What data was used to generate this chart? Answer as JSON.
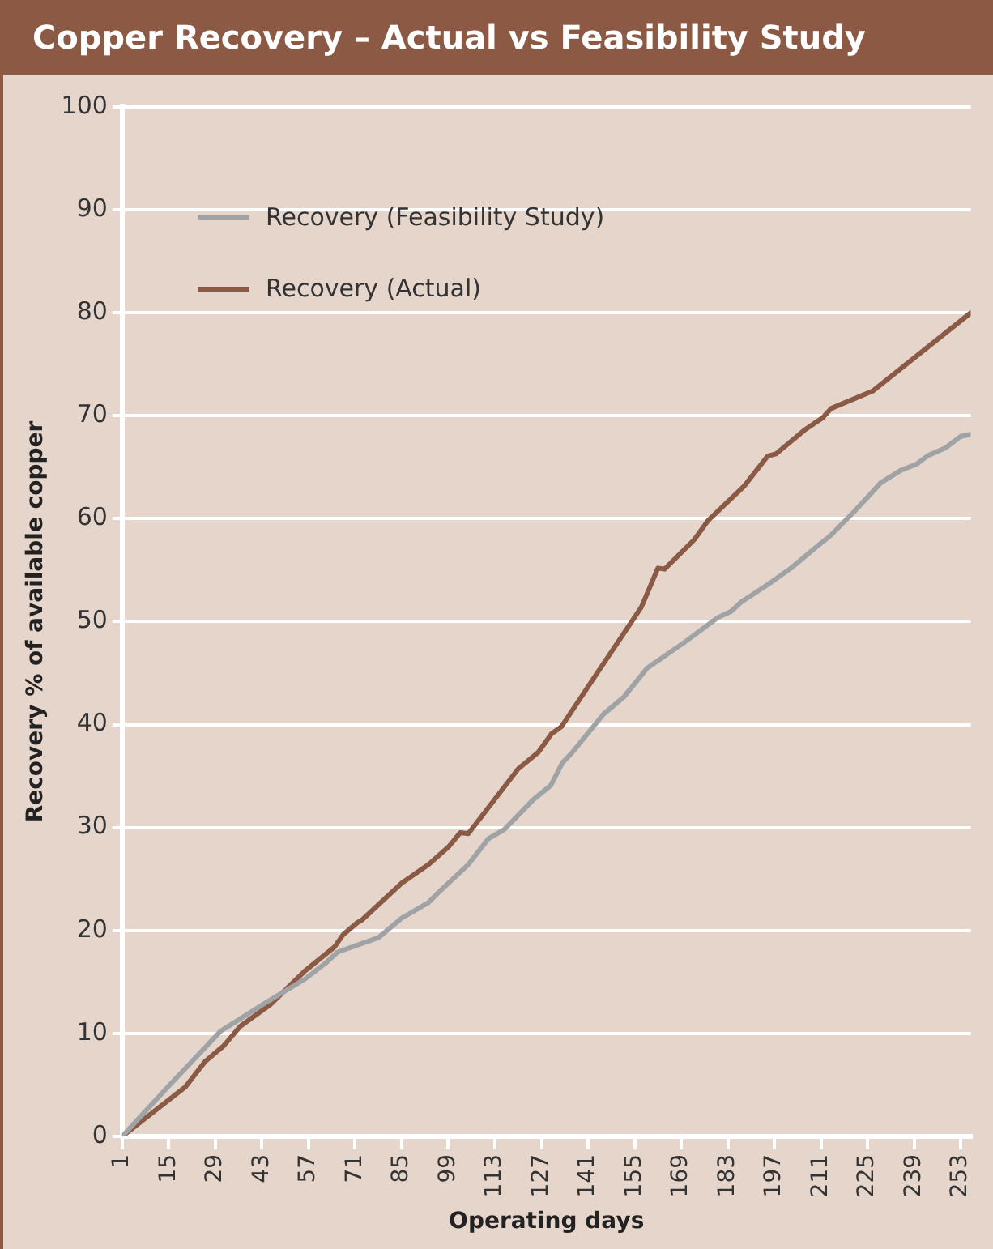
{
  "chart_data": {
    "type": "line",
    "title": "Copper Recovery – Actual vs Feasibility Study",
    "xlabel": "Operating days",
    "ylabel": "Recovery % of available copper",
    "xlim": [
      1,
      256
    ],
    "xticks": [
      1,
      15,
      29,
      43,
      57,
      71,
      85,
      99,
      113,
      127,
      141,
      155,
      169,
      183,
      197,
      211,
      225,
      239,
      253
    ],
    "ylim": [
      0,
      100
    ],
    "yticks": [
      0,
      10,
      20,
      30,
      40,
      50,
      60,
      70,
      80,
      90,
      100
    ],
    "grid": "y",
    "legend": "top left",
    "marker": "none",
    "line_style": "solid",
    "series": [
      {
        "name": "Recovery (Feasibility Study)",
        "color": "#a0a3a6",
        "x": [
          1,
          14.7,
          30.5,
          43.7,
          56,
          62,
          65.7,
          78,
          85,
          93,
          96.4,
          105,
          111,
          115.8,
          124.5,
          129.8,
          133.3,
          136,
          145.6,
          151.8,
          158.8,
          170,
          180,
          184,
          187,
          195,
          202,
          209,
          214,
          221,
          225.6,
          229,
          235,
          239.7,
          243,
          248.5,
          253,
          256
        ],
        "values": [
          0,
          4.8,
          10.2,
          12.9,
          15.3,
          16.8,
          17.9,
          19.3,
          21.2,
          22.7,
          23.8,
          26.4,
          28.9,
          29.8,
          32.7,
          34.1,
          36.3,
          37.2,
          41,
          42.7,
          45.5,
          48,
          50.4,
          51,
          51.9,
          53.6,
          55.2,
          57.1,
          58.4,
          60.7,
          62.3,
          63.5,
          64.7,
          65.3,
          66.1,
          66.9,
          68,
          68.2
        ]
      },
      {
        "name": "Recovery (Actual)",
        "color": "#8b5a45",
        "x": [
          1,
          20,
          26,
          31.5,
          36.5,
          45.5,
          56,
          64.8,
          67.4,
          71.8,
          73,
          85,
          93,
          99,
          102.6,
          105,
          120,
          126,
          130,
          133,
          143.5,
          157,
          162,
          164,
          173,
          177,
          188,
          195,
          197.5,
          206,
          211.5,
          214,
          226.5,
          256
        ],
        "values": [
          0,
          4.8,
          7.3,
          8.8,
          10.7,
          12.8,
          16.1,
          18.4,
          19.6,
          20.8,
          21,
          24.6,
          26.4,
          28.1,
          29.5,
          29.4,
          35.7,
          37.3,
          39.1,
          39.8,
          44.9,
          51.4,
          55.2,
          55.1,
          58,
          59.8,
          63.2,
          66.1,
          66.3,
          68.6,
          69.8,
          70.7,
          72.4,
          80
        ]
      }
    ]
  }
}
